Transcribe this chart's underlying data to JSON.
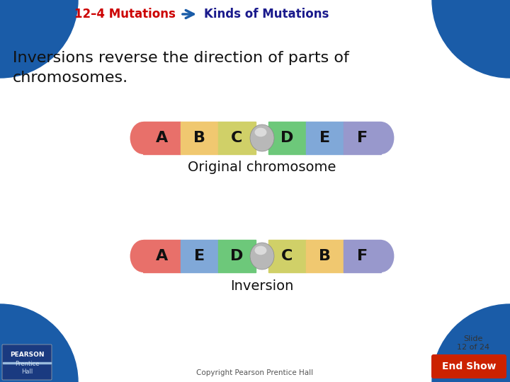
{
  "title1": "12–4 Mutations",
  "title2": "Kinds of Mutations",
  "body_text": "Inversions reverse the direction of parts of\nchromosomes.",
  "label1": "Original chromosome",
  "label2": "Inversion",
  "orig_letters": [
    "A",
    "B",
    "C",
    "D",
    "E",
    "F"
  ],
  "inv_letters": [
    "A",
    "E",
    "D",
    "C",
    "B",
    "F"
  ],
  "orig_colors": [
    "#E8706A",
    "#F0C870",
    "#D0D068",
    "#6DC87A",
    "#80A8D8",
    "#9898CC"
  ],
  "inv_colors": [
    "#E8706A",
    "#80A8D8",
    "#6DC87A",
    "#D0D068",
    "#F0C870",
    "#9898CC"
  ],
  "bg_color": "#FFFFFF",
  "corner_color": "#1A5CA8",
  "title1_color": "#CC0000",
  "title2_color": "#1A1A8C",
  "body_color": "#111111",
  "label_color": "#111111",
  "slide_text": "Slide\n12 of 24",
  "copyright": "Copyright Pearson Prentice Hall",
  "end_show_color": "#CC2200",
  "pearson_blue": "#2255AA",
  "pearson_dark": "#1A3A80"
}
